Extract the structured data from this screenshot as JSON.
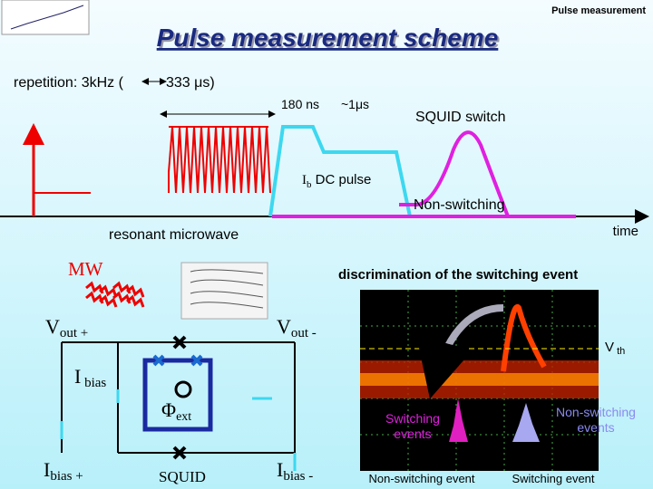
{
  "header": {
    "tag": "Pulse measurement",
    "title": "Pulse measurement scheme"
  },
  "timing": {
    "repetition": "repetition: 3kHz (",
    "period": "333 μs)",
    "rise": "180 ns",
    "plateau": "~1μs",
    "squid_switch": "SQUID switch",
    "dc_pulse": {
      "main": "I",
      "sub": "b",
      "rest": " DC pulse"
    },
    "non_switching": "Non-switching",
    "microwave": "resonant microwave",
    "time": "time"
  },
  "circuit": {
    "mw": "MW",
    "v_out_plus": {
      "main": "V",
      "sub": "out +"
    },
    "v_out_minus": {
      "main": "V",
      "sub": "out -"
    },
    "i_bias": {
      "main": "I",
      "sub": " bias"
    },
    "phi_ext": {
      "main": "Φ",
      "sub": "ext"
    },
    "i_bias_plus": {
      "main": "I",
      "sub": "bias +"
    },
    "squid": "SQUID",
    "i_bias_minus": {
      "main": "I",
      "sub": "bias -"
    }
  },
  "scope": {
    "title": "discrimination of the switching event",
    "v_th": {
      "main": "V",
      "sub": " th"
    },
    "switching_events": [
      "Switching",
      "events"
    ],
    "non_switching_events": [
      "Non-switching",
      "events"
    ],
    "non_switching_event": "Non-switching event",
    "switching_event": "Switching event"
  }
}
